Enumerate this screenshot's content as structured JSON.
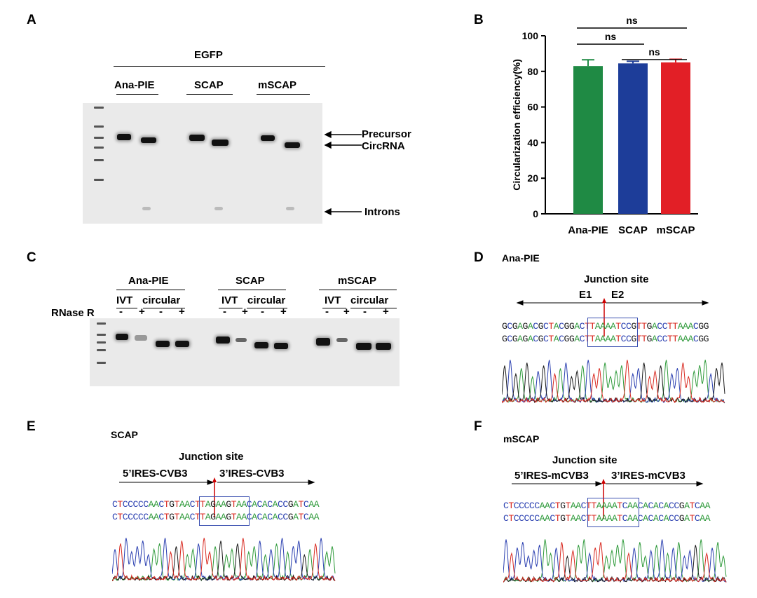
{
  "panels": {
    "a": "A",
    "b": "B",
    "c": "C",
    "d": "D",
    "e": "E",
    "f": "F"
  },
  "panel_a": {
    "group": "EGFP",
    "lanes": [
      "Ana-PIE",
      "SCAP",
      "mSCAP"
    ],
    "annotations": [
      "Precursor",
      "CircRNA",
      "Introns"
    ]
  },
  "panel_c": {
    "constructs": [
      "Ana-PIE",
      "SCAP",
      "mSCAP"
    ],
    "sub": [
      "IVT",
      "circular"
    ],
    "signs": [
      "-",
      "+"
    ],
    "rnase": "RNase R"
  },
  "panel_d": {
    "name": "Ana-PIE",
    "junction": "Junction site",
    "left": "E1",
    "right": "E2",
    "seq": "GCGAGACGCTACGGACTTAAAATCCGTTGACCTTAAACGG"
  },
  "panel_e": {
    "name": "SCAP",
    "junction": "Junction site",
    "left": "5’IRES-CVB3",
    "right": "3’IRES-CVB3",
    "seq": "CTCCCCCAACTGTAACTTAGAAGTAACACACACCGATCAA"
  },
  "panel_f": {
    "name": "mSCAP",
    "junction": "Junction site",
    "left": "5’IRES-mCVB3",
    "right": "3’IRES-mCVB3",
    "seq": "CTCCCCCAACTGTAACTTAAAATCAACACACACCGATCAA"
  },
  "colors": {
    "A": "#2e9a3a",
    "C": "#2a3fb0",
    "G": "#1a1a1a",
    "T": "#d8281f"
  },
  "chart_data": {
    "type": "bar",
    "categories": [
      "Ana-PIE",
      "SCAP",
      "mSCAP"
    ],
    "values": [
      83,
      84.5,
      85
    ],
    "errors": [
      3.5,
      1.2,
      1.8
    ],
    "colors": [
      "#1f8a44",
      "#1d3d99",
      "#e21f26"
    ],
    "ylabel": "Circularization efficiency(%)",
    "ylim": [
      0,
      100
    ],
    "yticks": [
      "0",
      "20",
      "40",
      "60",
      "80",
      "100"
    ],
    "significance": [
      {
        "from": 0,
        "to": 1,
        "label": "ns"
      },
      {
        "from": 1,
        "to": 2,
        "label": "ns"
      },
      {
        "from": 0,
        "to": 2,
        "label": "ns"
      }
    ]
  }
}
